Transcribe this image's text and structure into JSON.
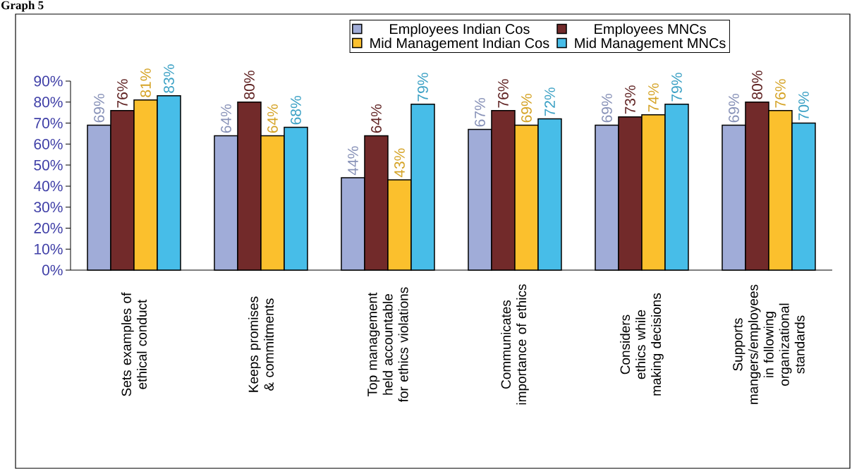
{
  "chart_data": {
    "type": "bar",
    "title": "Graph 5",
    "categories": [
      "Sets examples of ethical conduct",
      "Keeps promises & commitments",
      "Top management held accountable for ethics violations",
      "Communicates importance of ethics",
      "Considers ethics while making decisions",
      "Supports mangers/employees in following organizational standards"
    ],
    "series": [
      {
        "name": "Employees Indian Cos",
        "color": "#a0acd8",
        "values": [
          69,
          64,
          44,
          67,
          69,
          69
        ],
        "value_labels": [
          "69%",
          "64%",
          "44%",
          "67%",
          "69%",
          "69%"
        ]
      },
      {
        "name": "Employees MNCs",
        "color": "#722a2a",
        "values": [
          76,
          80,
          64,
          76,
          73,
          80
        ],
        "value_labels": [
          "76%",
          "80%",
          "64%",
          "76%",
          "73%",
          "80%"
        ]
      },
      {
        "name": "Mid Management Indian Cos",
        "color": "#fbc02d",
        "values": [
          81,
          64,
          43,
          69,
          74,
          76
        ],
        "value_labels": [
          "81%",
          "64%",
          "43%",
          "69%",
          "74%",
          "76%"
        ]
      },
      {
        "name": "Mid Management MNCs",
        "color": "#47bde8",
        "values": [
          83,
          68,
          79,
          72,
          79,
          70
        ],
        "value_labels": [
          "83%",
          "68%",
          "79%",
          "72%",
          "79%",
          "70%"
        ]
      }
    ],
    "ylim": [
      0,
      90
    ],
    "yticks": [
      {
        "value": 0,
        "label": "0%"
      },
      {
        "value": 10,
        "label": "10%"
      },
      {
        "value": 20,
        "label": "20%"
      },
      {
        "value": 30,
        "label": "30%"
      },
      {
        "value": 40,
        "label": "40%"
      },
      {
        "value": 50,
        "label": "50%"
      },
      {
        "value": 60,
        "label": "60%"
      },
      {
        "value": 70,
        "label": "70%"
      },
      {
        "value": 80,
        "label": "80%"
      },
      {
        "value": 90,
        "label": "90%"
      }
    ],
    "legend": "top"
  }
}
